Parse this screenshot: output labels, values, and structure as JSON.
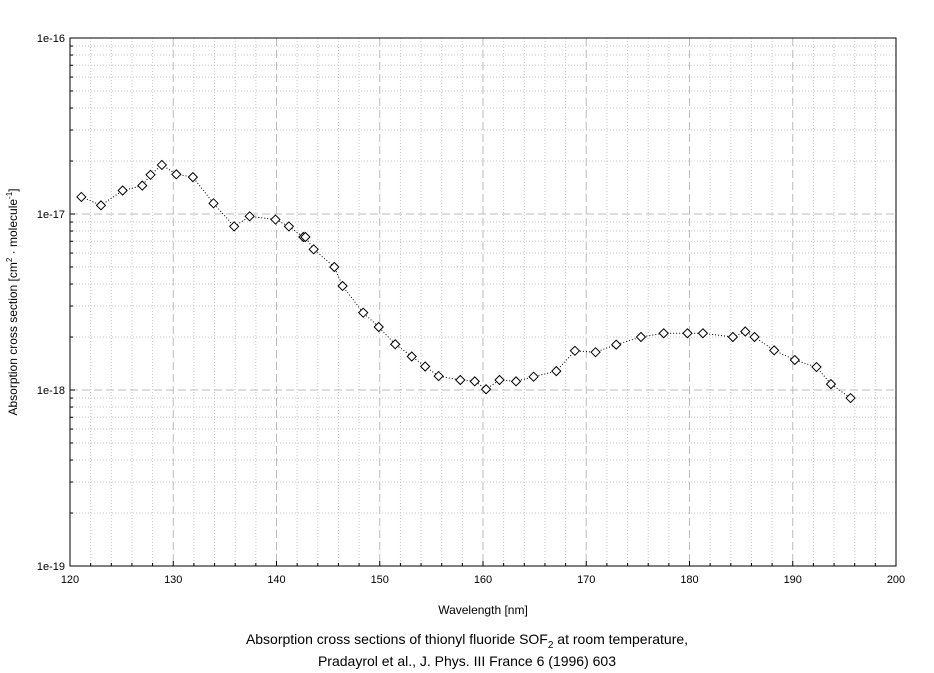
{
  "chart_data": {
    "type": "scatter",
    "xlabel": "Wavelength [nm]",
    "ylabel": {
      "prefix": "Absorption cross section [cm",
      "sup1": "2",
      "middle": " · molecule",
      "sup2": "-1",
      "suffix": "]"
    },
    "xlim": [
      120,
      200
    ],
    "ylim": [
      1e-19,
      1e-16
    ],
    "yscale": "log",
    "x_ticks": [
      "120",
      "130",
      "140",
      "150",
      "160",
      "170",
      "180",
      "190",
      "200"
    ],
    "y_ticks": [
      "1e-19",
      "1e-18",
      "1e-17",
      "1e-16"
    ],
    "grid": true,
    "marker": "diamond-open",
    "line_style": "dotted",
    "series": [
      {
        "x": [
          121.1,
          123.0,
          125.1,
          127.0,
          127.8,
          128.9,
          130.3,
          131.9,
          133.9,
          135.9,
          137.4,
          139.9,
          141.2,
          142.6,
          142.8,
          143.6,
          145.6,
          146.4,
          148.4,
          149.9,
          151.5,
          153.1,
          154.4,
          155.7,
          157.8,
          159.2,
          160.3,
          161.6,
          163.2,
          164.9,
          167.1,
          168.9,
          170.9,
          172.9,
          175.3,
          177.5,
          179.8,
          181.3,
          184.2,
          185.4,
          186.3,
          188.2,
          190.2,
          192.3,
          193.7,
          195.6
        ],
        "y": [
          1.25e-17,
          1.12e-17,
          1.36e-17,
          1.45e-17,
          1.67e-17,
          1.9e-17,
          1.68e-17,
          1.62e-17,
          1.15e-17,
          8.5e-18,
          9.7e-18,
          9.3e-18,
          8.5e-18,
          7.4e-18,
          7.4e-18,
          6.3e-18,
          5e-18,
          3.9e-18,
          2.75e-18,
          2.28e-18,
          1.82e-18,
          1.55e-18,
          1.36e-18,
          1.2e-18,
          1.14e-18,
          1.12e-18,
          1.01e-18,
          1.14e-18,
          1.12e-18,
          1.19e-18,
          1.28e-18,
          1.67e-18,
          1.64e-18,
          1.81e-18,
          2e-18,
          2.1e-18,
          2.1e-18,
          2.1e-18,
          2e-18,
          2.15e-18,
          2e-18,
          1.68e-18,
          1.48e-18,
          1.35e-18,
          1.08e-18,
          9e-19
        ]
      }
    ]
  },
  "caption": {
    "line1_prefix": "Absorption cross sections of thionyl fluoride SOF",
    "line1_sub": "2",
    "line1_suffix": " at room temperature,",
    "line2": "Pradayrol et al., J. Phys. III France 6 (1996) 603"
  }
}
